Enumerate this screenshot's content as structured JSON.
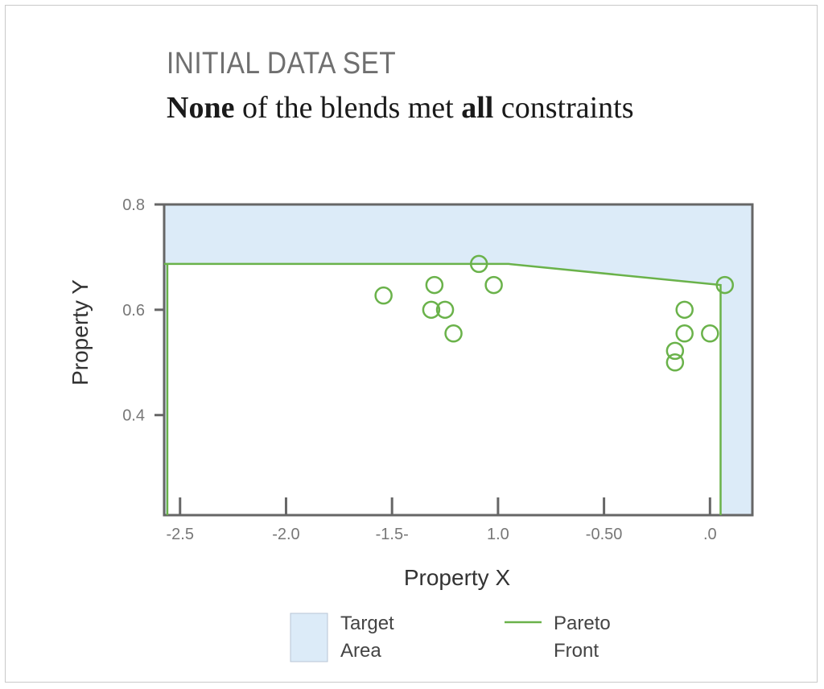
{
  "header": {
    "title": "INITIAL DATA SET",
    "subtitle_bold_1": "None",
    "subtitle_mid": " of the blends met ",
    "subtitle_bold_2": "all",
    "subtitle_end": " constraints"
  },
  "colors": {
    "accent_green": "#6ab24a",
    "target_fill": "#dcebf8",
    "axis": "#666666"
  },
  "chart_data": {
    "type": "scatter",
    "title": "INITIAL DATA SET",
    "subtitle": "None of the blends met all constraints",
    "xlabel": "Property X",
    "ylabel": "Property Y",
    "x_ticks": [
      {
        "label": "-2.5",
        "pos": 0
      },
      {
        "label": "-2.0",
        "pos": 1
      },
      {
        "label": "-1.5-",
        "pos": 2
      },
      {
        "label": "1.0",
        "pos": 3
      },
      {
        "label": "-0.50",
        "pos": 4
      },
      {
        "label": ".0",
        "pos": 5
      }
    ],
    "x_range": [
      -0.15,
      5.4
    ],
    "y_ticks": [
      0.8,
      0.6,
      0.4
    ],
    "y_tick_labels": [
      "0.8",
      "0.6",
      "0.4"
    ],
    "y_range": [
      0.21,
      0.8
    ],
    "points": [
      {
        "x": 1.92,
        "y": 0.627
      },
      {
        "x": 2.4,
        "y": 0.647
      },
      {
        "x": 2.37,
        "y": 0.6
      },
      {
        "x": 2.5,
        "y": 0.6
      },
      {
        "x": 2.58,
        "y": 0.555
      },
      {
        "x": 2.82,
        "y": 0.687
      },
      {
        "x": 2.96,
        "y": 0.647
      },
      {
        "x": 4.67,
        "y": 0.522
      },
      {
        "x": 4.67,
        "y": 0.5
      },
      {
        "x": 4.76,
        "y": 0.6
      },
      {
        "x": 4.76,
        "y": 0.555
      },
      {
        "x": 5.0,
        "y": 0.555
      },
      {
        "x": 5.14,
        "y": 0.647
      }
    ],
    "pareto_front": [
      {
        "x": -0.15,
        "y": 0.687
      },
      {
        "x": 3.1,
        "y": 0.687
      },
      {
        "x": 5.1,
        "y": 0.647
      },
      {
        "x": 5.1,
        "y": 0.21
      }
    ],
    "target_area_outline": [
      {
        "x": -0.12,
        "y": 0.687
      },
      {
        "x": -0.12,
        "y": 0.21
      }
    ],
    "legend": {
      "placement": "bottom",
      "items": [
        {
          "line1": "Target",
          "line2": "Area",
          "kind": "area"
        },
        {
          "line1": "Pareto",
          "line2": "Front",
          "kind": "line"
        }
      ]
    },
    "grid": false
  }
}
